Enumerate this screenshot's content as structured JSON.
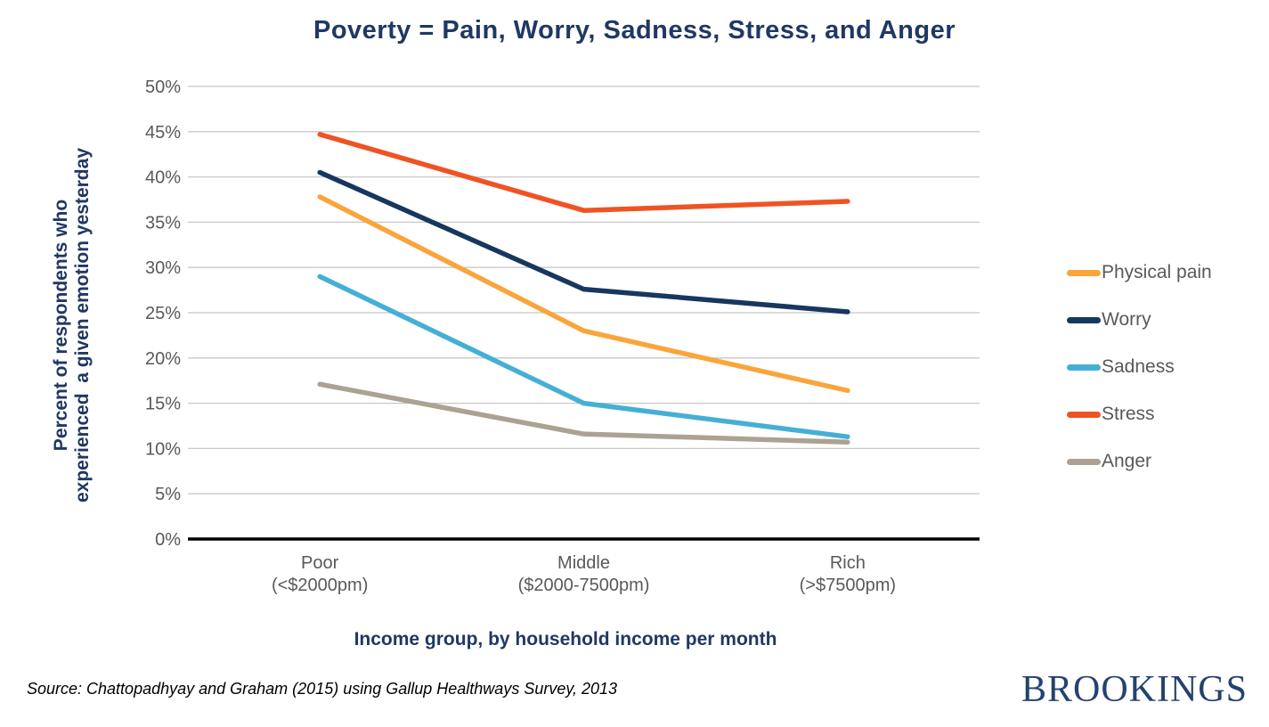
{
  "title": "Poverty = Pain, Worry, Sadness, Stress, and Anger",
  "chart_data": {
    "type": "line",
    "categories": [
      {
        "line1": "Poor",
        "line2": "(<$2000pm)"
      },
      {
        "line1": "Middle",
        "line2": "($2000-7500pm)"
      },
      {
        "line1": "Rich",
        "line2": "(>$7500pm)"
      }
    ],
    "series": [
      {
        "name": "Physical pain",
        "color": "#F9A53C",
        "values": [
          37.8,
          23.0,
          16.4
        ]
      },
      {
        "name": "Worry",
        "color": "#17375E",
        "values": [
          40.5,
          27.6,
          25.1
        ]
      },
      {
        "name": "Sadness",
        "color": "#45AFD5",
        "values": [
          29.0,
          15.0,
          11.3
        ]
      },
      {
        "name": "Stress",
        "color": "#F05323",
        "values": [
          44.7,
          36.3,
          37.3
        ]
      },
      {
        "name": "Anger",
        "color": "#ABA293",
        "values": [
          17.1,
          11.6,
          10.7
        ]
      }
    ],
    "ylim": [
      0,
      50
    ],
    "ytick_step": 5,
    "ytick_labels": [
      "0%",
      "5%",
      "10%",
      "15%",
      "20%",
      "25%",
      "30%",
      "35%",
      "40%",
      "45%",
      "50%"
    ],
    "ylabel_lines": [
      "Percent of respondents who",
      "experienced  a given emotion yesterday"
    ],
    "xlabel": "Income group, by household income per month",
    "grid": true,
    "legend_position": "right"
  },
  "colors": {
    "title": "#1F3864",
    "axis_text": "#595959",
    "gridline": "#C8C8C8",
    "axis_line": "#000000"
  },
  "source": "Source: Chattopadhyay and Graham (2015) using Gallup Healthways Survey, 2013",
  "logo": "BROOKINGS"
}
